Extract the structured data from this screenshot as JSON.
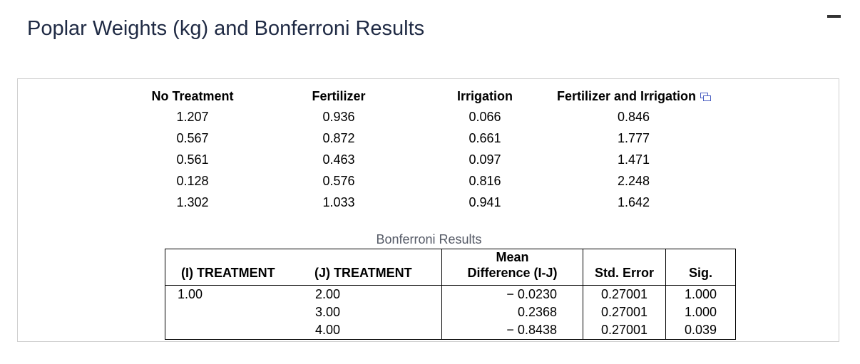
{
  "title": "Poplar Weights (kg) and Bonferroni Results",
  "weights": {
    "headers": [
      "No Treatment",
      "Fertilizer",
      "Irrigation",
      "Fertilizer and Irrigation"
    ],
    "rows": [
      [
        "1.207",
        "0.936",
        "0.066",
        "0.846"
      ],
      [
        "0.567",
        "0.872",
        "0.661",
        "1.777"
      ],
      [
        "0.561",
        "0.463",
        "0.097",
        "1.471"
      ],
      [
        "0.128",
        "0.576",
        "0.816",
        "2.248"
      ],
      [
        "1.302",
        "1.033",
        "0.941",
        "1.642"
      ]
    ]
  },
  "bonferroni": {
    "caption": "Bonferroni Results",
    "headers": [
      "(I) TREATMENT",
      "(J) TREATMENT",
      "Mean",
      "Difference (I-J)",
      "Std. Error",
      "Sig."
    ],
    "rows": [
      [
        "1.00",
        "2.00",
        "− 0.0230",
        "0.27001",
        "1.000"
      ],
      [
        "",
        "3.00",
        "0.2368",
        "0.27001",
        "1.000"
      ],
      [
        "",
        "4.00",
        "− 0.8438",
        "0.27001",
        "0.039"
      ]
    ]
  }
}
